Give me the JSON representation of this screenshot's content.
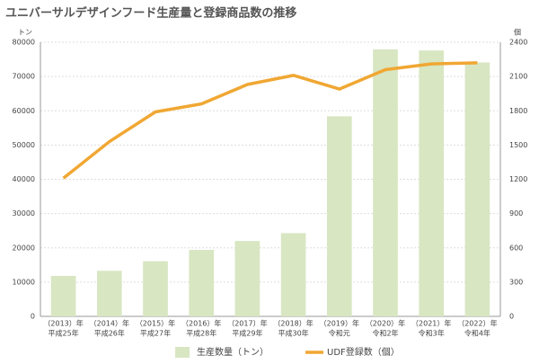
{
  "chart_data": {
    "type": "bar-line",
    "title": "ユニバーサルデザインフード生産量と登録商品数の推移",
    "y_unit": "トン",
    "y2_unit": "個",
    "categories": [
      [
        "（2013）年",
        "平成25年"
      ],
      [
        "（2014）年",
        "平成26年"
      ],
      [
        "（2015）年",
        "平成27年"
      ],
      [
        "（2016）年",
        "平成28年"
      ],
      [
        "（2017）年",
        "平成29年"
      ],
      [
        "（2018）年",
        "平成30年"
      ],
      [
        "（2019）年",
        "令和元"
      ],
      [
        "（2020）年",
        "令和2年"
      ],
      [
        "（2021）年",
        "令和3年"
      ],
      [
        "（2022）年",
        "令和4年"
      ]
    ],
    "series": [
      {
        "name": "生産数量（トン）",
        "type": "bar",
        "color": "#d8e6c2",
        "values": [
          11800,
          13300,
          16100,
          19400,
          22000,
          24300,
          58400,
          77900,
          77600,
          74100
        ]
      },
      {
        "name": "UDF登録数（個）",
        "type": "line",
        "axis": "y2",
        "color": "#f0a733",
        "values": [
          1210,
          1530,
          1790,
          1860,
          2030,
          2110,
          1990,
          2160,
          2210,
          2220
        ]
      }
    ],
    "ylim": [
      0,
      80000
    ],
    "yticks": [
      0,
      10000,
      20000,
      30000,
      40000,
      50000,
      60000,
      70000,
      80000
    ],
    "y2lim": [
      0,
      2400
    ],
    "y2ticks": [
      0,
      300,
      600,
      900,
      1200,
      1500,
      1800,
      2100,
      2400
    ],
    "grid": true
  }
}
